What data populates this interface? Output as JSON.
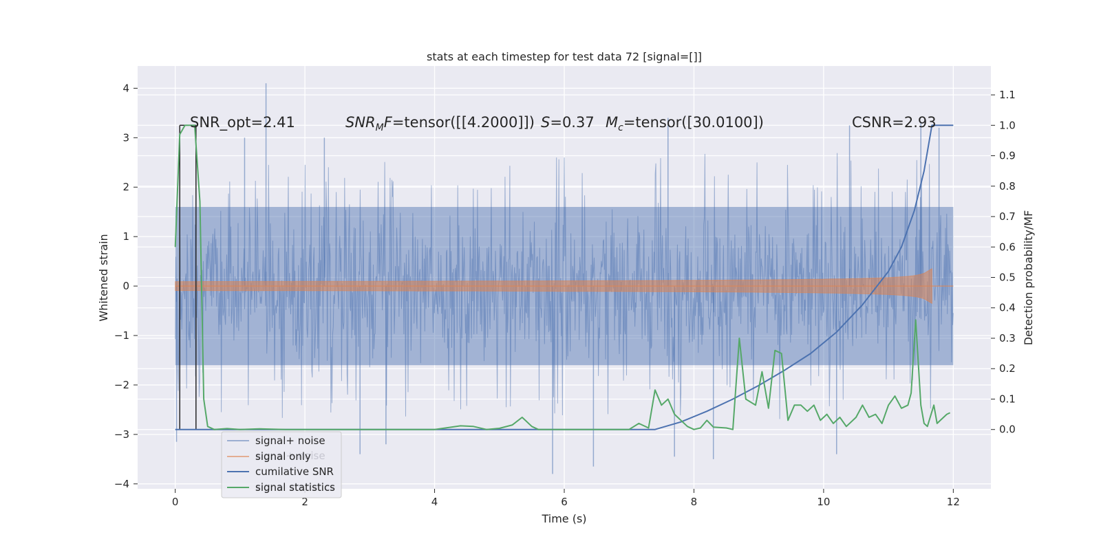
{
  "chart_data": {
    "type": "line",
    "title": "stats at each timestep for test data 72 [signal=[]]",
    "xlabel": "Time (s)",
    "ylabel_left": "Whitened strain",
    "ylabel_right": "Detection probability/MF",
    "xlim": [
      -0.58,
      12.58
    ],
    "ylim_left": [
      -4.1,
      4.45
    ],
    "ylim_right": [
      -0.195,
      1.195
    ],
    "x_ticks": [
      0,
      2,
      4,
      6,
      8,
      10,
      12
    ],
    "x_tick_labels": [
      "0",
      "2",
      "4",
      "6",
      "8",
      "10",
      "12"
    ],
    "y_left_ticks": [
      -4,
      -3,
      -2,
      -1,
      0,
      1,
      2,
      3,
      4
    ],
    "y_left_tick_labels": [
      "−4",
      "−3",
      "−2",
      "−1",
      "0",
      "1",
      "2",
      "3",
      "4"
    ],
    "y_right_ticks": [
      0.0,
      0.1,
      0.2,
      0.3,
      0.4,
      0.5,
      0.6,
      0.7,
      0.8,
      0.9,
      1.0,
      1.1
    ],
    "y_right_tick_labels": [
      "0.0",
      "0.1",
      "0.2",
      "0.3",
      "0.4",
      "0.5",
      "0.6",
      "0.7",
      "0.8",
      "0.9",
      "1.0",
      "1.1"
    ],
    "annotations": {
      "snr_opt": "SNR_opt=2.41",
      "snr_mf_sym": "SNR",
      "snr_mf_sub": "M",
      "snr_mf_f": "F",
      "snr_mf_val": "=tensor([[4.2000]])",
      "s_sym": "S",
      "s_val": "=0.37",
      "mc_sym": "M",
      "mc_sub": "c",
      "mc_val": "=tensor([30.0100])",
      "csnr": "CSNR=2.93"
    },
    "legend": {
      "placement": "lower-left",
      "entries": [
        "signal+ noise",
        "signal only",
        "cumilative SNR",
        "signal statistics"
      ],
      "ghost_entries": [
        "signal+ noise",
        "signal statistics"
      ]
    },
    "series": [
      {
        "name": "signal+ noise",
        "axis": "left",
        "color": "#4c72b0",
        "style": "noise-band",
        "x_range": [
          0,
          12
        ],
        "typical_range": [
          -1.6,
          1.6
        ],
        "spikes": [
          {
            "x": 0.02,
            "y": -3.15
          },
          {
            "x": 1.4,
            "y": 4.1
          },
          {
            "x": 1.07,
            "y": 3.0
          },
          {
            "x": 2.3,
            "y": 3.0
          },
          {
            "x": 2.85,
            "y": -3.4
          },
          {
            "x": 3.25,
            "y": -3.2
          },
          {
            "x": 5.82,
            "y": -3.8
          },
          {
            "x": 6.45,
            "y": -3.65
          },
          {
            "x": 7.6,
            "y": 3.4
          },
          {
            "x": 7.7,
            "y": -3.45
          },
          {
            "x": 8.3,
            "y": -3.5
          },
          {
            "x": 10.2,
            "y": -3.4
          },
          {
            "x": 10.4,
            "y": 3.25
          },
          {
            "x": 11.5,
            "y": 3.3
          },
          {
            "x": 11.78,
            "y": 3.2
          }
        ]
      },
      {
        "name": "signal only",
        "axis": "left",
        "color": "#dd8452",
        "style": "chirp",
        "x_range": [
          0,
          12
        ],
        "merger_time": 11.67,
        "peak_amplitude": 0.35
      },
      {
        "name": "cumilative SNR",
        "axis": "right",
        "color": "#4c72b0",
        "x": [
          0,
          7.4,
          7.8,
          8.2,
          8.6,
          9.0,
          9.4,
          9.8,
          10.2,
          10.6,
          11.0,
          11.2,
          11.4,
          11.55,
          11.67,
          12.0
        ],
        "y": [
          0,
          0,
          0.025,
          0.06,
          0.1,
          0.145,
          0.195,
          0.25,
          0.32,
          0.41,
          0.52,
          0.6,
          0.72,
          0.85,
          1.0,
          1.0
        ]
      },
      {
        "name": "signal statistics",
        "axis": "right",
        "color": "#55a868",
        "x": [
          0,
          0.07,
          0.15,
          0.3,
          0.38,
          0.44,
          0.5,
          0.6,
          0.8,
          1.0,
          1.3,
          1.7,
          2.0,
          3.0,
          4.0,
          4.4,
          4.6,
          4.8,
          5.0,
          5.2,
          5.35,
          5.5,
          5.6,
          5.8,
          6.0,
          7.0,
          7.15,
          7.3,
          7.4,
          7.5,
          7.6,
          7.7,
          7.9,
          8.0,
          8.1,
          8.2,
          8.3,
          8.5,
          8.6,
          8.7,
          8.8,
          8.95,
          9.05,
          9.15,
          9.25,
          9.35,
          9.45,
          9.55,
          9.65,
          9.75,
          9.85,
          9.95,
          10.05,
          10.15,
          10.25,
          10.35,
          10.5,
          10.6,
          10.7,
          10.8,
          10.9,
          11.0,
          11.1,
          11.2,
          11.3,
          11.35,
          11.42,
          11.5,
          11.55,
          11.6,
          11.7,
          11.75,
          11.8,
          11.9,
          11.95
        ],
        "y": [
          0.6,
          0.97,
          1.0,
          1.0,
          0.75,
          0.1,
          0.01,
          0.0,
          0.003,
          0.0,
          0.002,
          0.0,
          0.0,
          0.0,
          0.0,
          0.012,
          0.01,
          0.0,
          0.004,
          0.015,
          0.04,
          0.01,
          0.0,
          0.0,
          0.0,
          0.0,
          0.02,
          0.005,
          0.13,
          0.08,
          0.1,
          0.05,
          0.01,
          0.0,
          0.005,
          0.03,
          0.008,
          0.005,
          0.0,
          0.3,
          0.1,
          0.08,
          0.19,
          0.07,
          0.26,
          0.25,
          0.03,
          0.08,
          0.08,
          0.06,
          0.08,
          0.03,
          0.05,
          0.02,
          0.04,
          0.01,
          0.04,
          0.08,
          0.04,
          0.05,
          0.02,
          0.08,
          0.11,
          0.07,
          0.08,
          0.12,
          0.36,
          0.08,
          0.02,
          0.01,
          0.08,
          0.02,
          0.03,
          0.05,
          0.055
        ]
      }
    ],
    "vlines": [
      0.07,
      0.32
    ]
  }
}
